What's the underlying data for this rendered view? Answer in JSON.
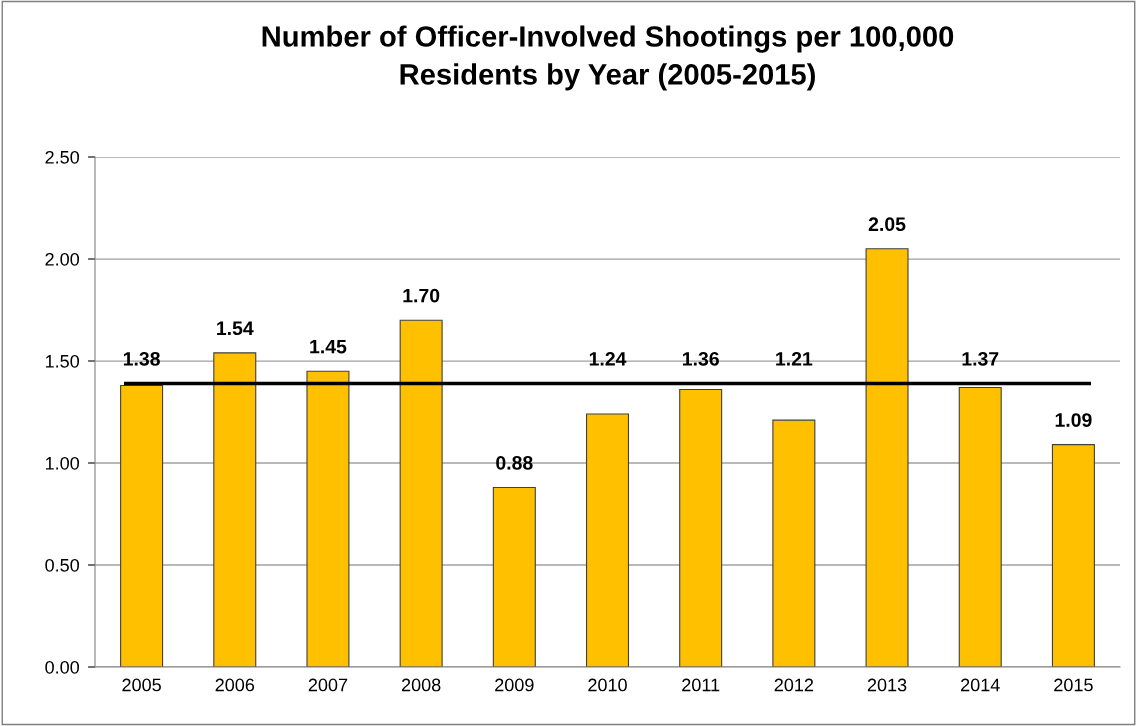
{
  "chart_data": {
    "type": "bar",
    "title": "Number of Officer-Involved Shootings per 100,000\nResidents by Year (2005-2015)",
    "categories": [
      "2005",
      "2006",
      "2007",
      "2008",
      "2009",
      "2010",
      "2011",
      "2012",
      "2013",
      "2014",
      "2015"
    ],
    "values": [
      1.38,
      1.54,
      1.45,
      1.7,
      0.88,
      1.24,
      1.36,
      1.21,
      2.05,
      1.37,
      1.09
    ],
    "color": "#ffc000",
    "value_labels": [
      "1.38",
      "1.54",
      "1.45",
      "1.70",
      "0.88",
      "1.24",
      "1.36",
      "1.21",
      "2.05",
      "1.37",
      "1.09"
    ],
    "ylim": [
      0,
      2.5
    ],
    "yticks": [
      {
        "value": 0,
        "label": "0.00"
      },
      {
        "value": 0.5,
        "label": "0.50"
      },
      {
        "value": 1,
        "label": "1.00"
      },
      {
        "value": 1.5,
        "label": "1.50"
      },
      {
        "value": 2,
        "label": "2.00"
      },
      {
        "value": 2.5,
        "label": "2.50"
      }
    ],
    "grid": "y",
    "legend": false,
    "ref_lines": [
      {
        "axis": "y",
        "value": 1.39,
        "color": "#000000"
      }
    ]
  }
}
